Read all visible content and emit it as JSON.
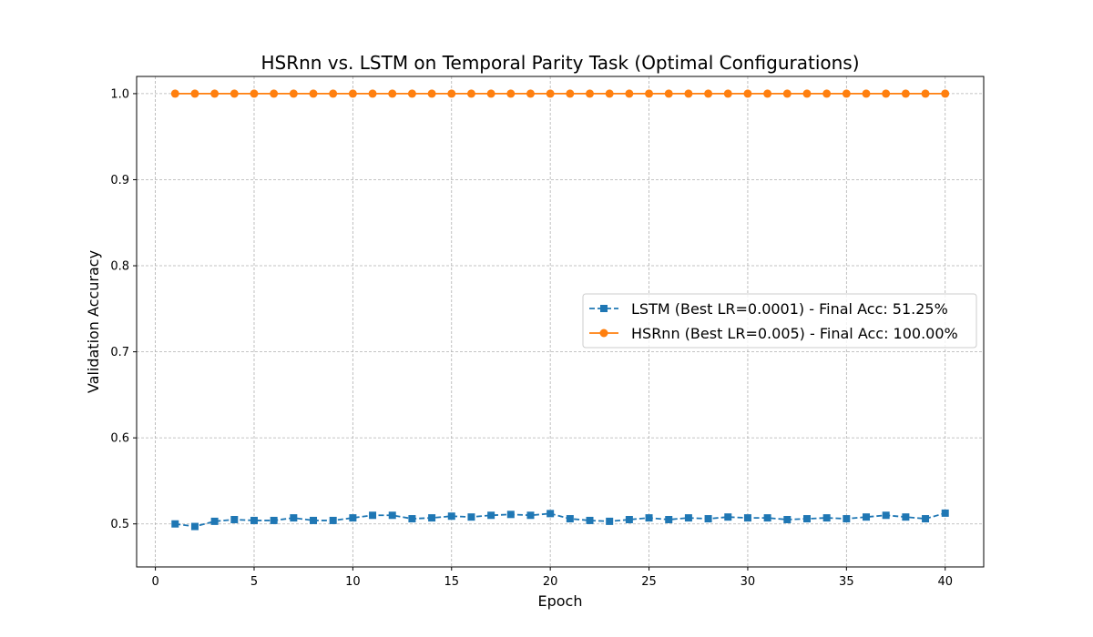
{
  "chart_data": {
    "type": "line",
    "title": "HSRnn vs. LSTM on Temporal Parity Task (Optimal Configurations)",
    "xlabel": "Epoch",
    "ylabel": "Validation Accuracy",
    "xlim": [
      -0.95,
      41.95
    ],
    "ylim": [
      0.45,
      1.02
    ],
    "xticks": [
      0,
      5,
      10,
      15,
      20,
      25,
      30,
      35,
      40
    ],
    "yticks": [
      0.5,
      0.6,
      0.7,
      0.8,
      0.9,
      1.0
    ],
    "ytick_labels": [
      "0.5",
      "0.6",
      "0.7",
      "0.8",
      "0.9",
      "1.0"
    ],
    "grid": true,
    "legend_position": "center-right",
    "x": [
      1,
      2,
      3,
      4,
      5,
      6,
      7,
      8,
      9,
      10,
      11,
      12,
      13,
      14,
      15,
      16,
      17,
      18,
      19,
      20,
      21,
      22,
      23,
      24,
      25,
      26,
      27,
      28,
      29,
      30,
      31,
      32,
      33,
      34,
      35,
      36,
      37,
      38,
      39,
      40
    ],
    "series": [
      {
        "name": "LSTM (Best LR=0.0001) - Final Acc: 51.25%",
        "color": "#1f77b4",
        "line_style": "dashed",
        "marker": "square",
        "values": [
          0.5,
          0.497,
          0.503,
          0.505,
          0.504,
          0.504,
          0.507,
          0.504,
          0.504,
          0.507,
          0.51,
          0.51,
          0.506,
          0.507,
          0.509,
          0.508,
          0.51,
          0.511,
          0.51,
          0.512,
          0.506,
          0.504,
          0.503,
          0.505,
          0.507,
          0.505,
          0.507,
          0.506,
          0.508,
          0.507,
          0.507,
          0.505,
          0.506,
          0.507,
          0.506,
          0.508,
          0.51,
          0.508,
          0.506,
          0.5125
        ]
      },
      {
        "name": "HSRnn (Best LR=0.005) - Final Acc: 100.00%",
        "color": "#ff7f0e",
        "line_style": "solid",
        "marker": "circle",
        "values": [
          1.0,
          1.0,
          1.0,
          1.0,
          1.0,
          1.0,
          1.0,
          1.0,
          1.0,
          1.0,
          1.0,
          1.0,
          1.0,
          1.0,
          1.0,
          1.0,
          1.0,
          1.0,
          1.0,
          1.0,
          1.0,
          1.0,
          1.0,
          1.0,
          1.0,
          1.0,
          1.0,
          1.0,
          1.0,
          1.0,
          1.0,
          1.0,
          1.0,
          1.0,
          1.0,
          1.0,
          1.0,
          1.0,
          1.0,
          1.0
        ]
      }
    ]
  }
}
